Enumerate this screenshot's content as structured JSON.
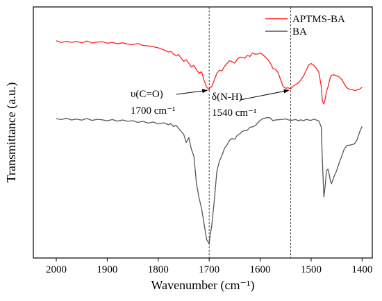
{
  "chart_data": {
    "type": "line",
    "xlabel": "Wavenumber (cm⁻¹)",
    "ylabel": "Transmittance (a.u.)",
    "xlim": [
      2045,
      1380
    ],
    "x_reversed": true,
    "xticks": [
      2000,
      1900,
      1800,
      1700,
      1600,
      1500,
      1400
    ],
    "ylim": [
      0,
      100
    ],
    "y_ticks_shown": false,
    "legend_position": "top-right",
    "series": [
      {
        "name": "APTMS-BA",
        "color": "#ff2020",
        "x": [
          2000,
          1990,
          1980,
          1970,
          1960,
          1950,
          1940,
          1930,
          1920,
          1910,
          1900,
          1890,
          1880,
          1870,
          1860,
          1850,
          1840,
          1830,
          1820,
          1810,
          1800,
          1790,
          1780,
          1775,
          1770,
          1765,
          1760,
          1755,
          1750,
          1745,
          1740,
          1735,
          1730,
          1725,
          1720,
          1715,
          1710,
          1705,
          1700,
          1698,
          1695,
          1690,
          1685,
          1680,
          1675,
          1670,
          1665,
          1660,
          1655,
          1650,
          1645,
          1640,
          1635,
          1630,
          1625,
          1620,
          1615,
          1610,
          1605,
          1600,
          1595,
          1590,
          1585,
          1580,
          1575,
          1570,
          1565,
          1560,
          1555,
          1550,
          1545,
          1540,
          1535,
          1530,
          1525,
          1520,
          1515,
          1510,
          1505,
          1500,
          1495,
          1490,
          1485,
          1480,
          1478,
          1475,
          1472,
          1470,
          1467,
          1465,
          1462,
          1460,
          1455,
          1450,
          1445,
          1440,
          1435,
          1430,
          1425,
          1420,
          1415,
          1410,
          1405,
          1400
        ],
        "y": [
          92.5,
          91.7,
          92.3,
          91.8,
          92.2,
          91.6,
          92.4,
          91.5,
          91.9,
          92.1,
          91.4,
          91.8,
          91.2,
          91.6,
          91.0,
          90.8,
          91.3,
          90.4,
          90.2,
          89.8,
          89.3,
          88.5,
          87.4,
          87.7,
          86.5,
          85.8,
          86.3,
          84.6,
          83.2,
          83.9,
          82.3,
          80.6,
          81.4,
          79.4,
          77.8,
          78.5,
          74.6,
          71.5,
          70.3,
          71.5,
          71.6,
          74.7,
          77.7,
          79.1,
          78.9,
          80.9,
          82.2,
          83.5,
          83.0,
          82.4,
          84.1,
          85.1,
          85.0,
          84.6,
          85.9,
          85.4,
          87.0,
          86.4,
          86.5,
          86.9,
          86.3,
          85.2,
          84.0,
          82.4,
          80.0,
          79.5,
          78.2,
          75.0,
          71.8,
          71.0,
          71.2,
          70.7,
          72.0,
          72.7,
          73.4,
          74.9,
          76.5,
          78.9,
          81.5,
          82.2,
          81.4,
          80.1,
          78.5,
          71.8,
          65.3,
          63.8,
          66.5,
          69.6,
          71.5,
          73.6,
          75.9,
          76.9,
          77.1,
          76.6,
          76.2,
          75.0,
          73.0,
          71.2,
          70.5,
          70.4,
          70.0,
          70.2,
          70.6,
          71.4
        ]
      },
      {
        "name": "BA",
        "color": "#555555",
        "x": [
          2000,
          1990,
          1980,
          1970,
          1960,
          1950,
          1940,
          1930,
          1920,
          1910,
          1900,
          1890,
          1880,
          1870,
          1860,
          1850,
          1840,
          1830,
          1820,
          1810,
          1800,
          1790,
          1780,
          1775,
          1770,
          1765,
          1760,
          1755,
          1750,
          1745,
          1740,
          1735,
          1730,
          1725,
          1720,
          1715,
          1710,
          1705,
          1700,
          1698,
          1695,
          1690,
          1685,
          1680,
          1675,
          1670,
          1665,
          1660,
          1655,
          1650,
          1645,
          1640,
          1635,
          1630,
          1625,
          1620,
          1615,
          1610,
          1605,
          1600,
          1595,
          1590,
          1585,
          1580,
          1575,
          1570,
          1565,
          1560,
          1555,
          1550,
          1545,
          1540,
          1535,
          1530,
          1525,
          1520,
          1515,
          1510,
          1505,
          1500,
          1495,
          1490,
          1485,
          1480,
          1478,
          1475,
          1472,
          1470,
          1467,
          1465,
          1462,
          1460,
          1455,
          1450,
          1445,
          1440,
          1435,
          1430,
          1425,
          1420,
          1415,
          1410,
          1405,
          1400
        ],
        "y": [
          57.2,
          56.8,
          57.4,
          56.6,
          57.0,
          56.5,
          57.3,
          56.4,
          56.9,
          56.7,
          56.2,
          56.8,
          56.1,
          56.6,
          56.0,
          56.3,
          55.5,
          56.0,
          55.2,
          55.7,
          54.8,
          55.3,
          54.5,
          54.9,
          53.6,
          54.2,
          52.8,
          51.4,
          50.1,
          46.4,
          48.6,
          43.4,
          40.1,
          27.9,
          21.4,
          16.5,
          9.6,
          2.4,
          0.5,
          4.2,
          8.5,
          20.0,
          33.3,
          37.9,
          40.4,
          43.7,
          45.3,
          47.4,
          48.2,
          47.9,
          49.6,
          50.3,
          51.4,
          51.8,
          52.0,
          53.3,
          53.5,
          54.0,
          55.2,
          56.4,
          57.2,
          57.5,
          57.7,
          57.5,
          56.3,
          56.6,
          56.7,
          56.8,
          56.9,
          57.1,
          56.7,
          56.4,
          56.6,
          56.8,
          56.3,
          56.7,
          56.2,
          56.9,
          56.6,
          56.4,
          57.0,
          56.6,
          56.2,
          53.4,
          38.6,
          21.7,
          27.6,
          33.6,
          34.3,
          32.5,
          28.8,
          27.7,
          31.0,
          33.6,
          37.1,
          40.2,
          43.4,
          45.0,
          45.2,
          45.4,
          45.8,
          47.6,
          51.1,
          53.7
        ]
      }
    ],
    "vlines": [
      1700,
      1540
    ],
    "annotations": [
      {
        "text": "υ(C=O)",
        "sub": "1700 cm⁻¹",
        "target_x": 1700,
        "target_y": 71
      },
      {
        "text": "δ(N-H)",
        "sub": "1540 cm⁻¹",
        "target_x": 1540,
        "target_y": 71
      }
    ]
  }
}
